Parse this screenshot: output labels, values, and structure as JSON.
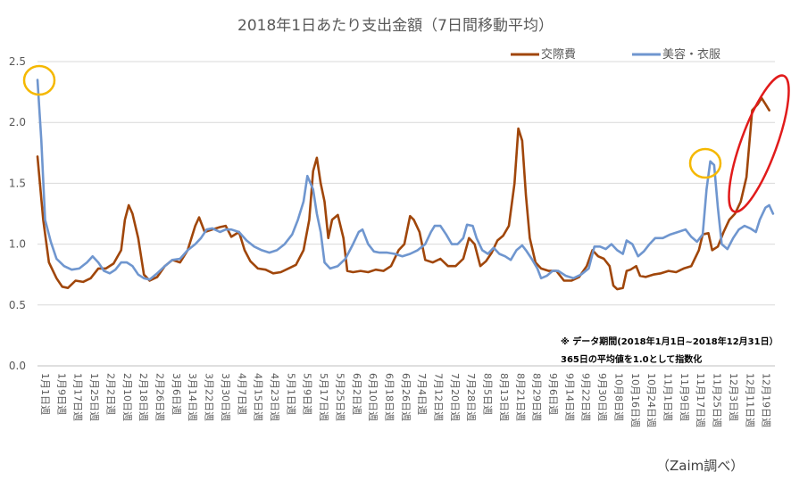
{
  "chart_data": {
    "type": "line",
    "title": "2018年1日あたり支出金額（7日間移動平均）",
    "ylim": [
      0,
      2.5
    ],
    "yticks": [
      "0.0",
      "0.5",
      "1.0",
      "1.5",
      "2.0",
      "2.5"
    ],
    "grid": true,
    "legend_position": "top-right",
    "x_labels": [
      "1月1日週",
      "1月9日週",
      "1月17日週",
      "1月25日週",
      "2月2日週",
      "2月10日週",
      "2月18日週",
      "2月26日週",
      "3月6日週",
      "3月14日週",
      "3月22日週",
      "3月30日週",
      "4月7日週",
      "4月15日週",
      "4月23日週",
      "5月1日週",
      "5月9日週",
      "5月17日週",
      "5月25日週",
      "6月2日週",
      "6月10日週",
      "6月18日週",
      "6月26日週",
      "7月4日週",
      "7月12日週",
      "7月20日週",
      "7月28日週",
      "8月5日週",
      "8月13日週",
      "8月21日週",
      "8月29日週",
      "9月6日週",
      "9月14日週",
      "9月22日週",
      "9月30日週",
      "10月8日週",
      "10月16日週",
      "10月24日週",
      "11月1日週",
      "11月9日週",
      "11月17日週",
      "11月25日週",
      "12月3日週",
      "12月11日週",
      "12月19日週"
    ],
    "series": [
      {
        "name": "交際費",
        "color": "#A0460A",
        "points": [
          [
            0,
            1.72
          ],
          [
            3,
            1.2
          ],
          [
            6,
            0.85
          ],
          [
            10,
            0.72
          ],
          [
            13,
            0.65
          ],
          [
            16,
            0.64
          ],
          [
            20,
            0.7
          ],
          [
            24,
            0.69
          ],
          [
            28,
            0.72
          ],
          [
            32,
            0.8
          ],
          [
            36,
            0.8
          ],
          [
            40,
            0.84
          ],
          [
            44,
            0.95
          ],
          [
            46,
            1.2
          ],
          [
            48,
            1.32
          ],
          [
            50,
            1.25
          ],
          [
            53,
            1.05
          ],
          [
            56,
            0.75
          ],
          [
            59,
            0.7
          ],
          [
            63,
            0.73
          ],
          [
            67,
            0.82
          ],
          [
            71,
            0.87
          ],
          [
            75,
            0.85
          ],
          [
            79,
            0.95
          ],
          [
            83,
            1.15
          ],
          [
            85,
            1.22
          ],
          [
            88,
            1.1
          ],
          [
            92,
            1.12
          ],
          [
            96,
            1.14
          ],
          [
            99,
            1.15
          ],
          [
            102,
            1.06
          ],
          [
            106,
            1.1
          ],
          [
            109,
            0.95
          ],
          [
            112,
            0.86
          ],
          [
            116,
            0.8
          ],
          [
            120,
            0.79
          ],
          [
            124,
            0.76
          ],
          [
            128,
            0.77
          ],
          [
            132,
            0.8
          ],
          [
            136,
            0.83
          ],
          [
            140,
            0.95
          ],
          [
            143,
            1.2
          ],
          [
            145,
            1.6
          ],
          [
            147,
            1.71
          ],
          [
            149,
            1.5
          ],
          [
            151,
            1.35
          ],
          [
            153,
            1.05
          ],
          [
            155,
            1.2
          ],
          [
            158,
            1.24
          ],
          [
            161,
            1.05
          ],
          [
            163,
            0.78
          ],
          [
            166,
            0.77
          ],
          [
            170,
            0.78
          ],
          [
            174,
            0.77
          ],
          [
            178,
            0.79
          ],
          [
            182,
            0.78
          ],
          [
            186,
            0.82
          ],
          [
            190,
            0.95
          ],
          [
            193,
            1.0
          ],
          [
            196,
            1.23
          ],
          [
            198,
            1.2
          ],
          [
            201,
            1.1
          ],
          [
            204,
            0.87
          ],
          [
            208,
            0.85
          ],
          [
            212,
            0.88
          ],
          [
            216,
            0.82
          ],
          [
            220,
            0.82
          ],
          [
            224,
            0.88
          ],
          [
            227,
            1.05
          ],
          [
            230,
            1.0
          ],
          [
            233,
            0.82
          ],
          [
            236,
            0.86
          ],
          [
            239,
            0.93
          ],
          [
            242,
            1.03
          ],
          [
            245,
            1.07
          ],
          [
            248,
            1.15
          ],
          [
            251,
            1.5
          ],
          [
            253,
            1.95
          ],
          [
            255,
            1.85
          ],
          [
            257,
            1.4
          ],
          [
            259,
            1.05
          ],
          [
            262,
            0.85
          ],
          [
            265,
            0.8
          ],
          [
            269,
            0.78
          ],
          [
            273,
            0.78
          ],
          [
            277,
            0.7
          ],
          [
            281,
            0.7
          ],
          [
            285,
            0.73
          ],
          [
            289,
            0.82
          ],
          [
            292,
            0.95
          ],
          [
            295,
            0.9
          ],
          [
            298,
            0.88
          ],
          [
            301,
            0.82
          ],
          [
            303,
            0.66
          ],
          [
            305,
            0.63
          ],
          [
            308,
            0.64
          ],
          [
            310,
            0.78
          ],
          [
            312,
            0.79
          ],
          [
            315,
            0.82
          ],
          [
            317,
            0.74
          ],
          [
            320,
            0.73
          ],
          [
            324,
            0.75
          ],
          [
            328,
            0.76
          ],
          [
            332,
            0.78
          ],
          [
            336,
            0.77
          ],
          [
            340,
            0.8
          ],
          [
            344,
            0.82
          ],
          [
            348,
            0.95
          ],
          [
            350,
            1.08
          ],
          [
            353,
            1.09
          ],
          [
            355,
            0.95
          ],
          [
            358,
            0.98
          ],
          [
            361,
            1.1
          ],
          [
            364,
            1.2
          ],
          [
            367,
            1.25
          ],
          [
            370,
            1.35
          ],
          [
            373,
            1.55
          ],
          [
            376,
            2.1
          ],
          [
            379,
            2.15
          ],
          [
            381,
            2.2
          ],
          [
            383,
            2.15
          ],
          [
            385,
            2.1
          ]
        ]
      },
      {
        "name": "美容・衣服",
        "color": "#6F96CF",
        "points": [
          [
            0,
            2.35
          ],
          [
            2,
            1.85
          ],
          [
            4,
            1.2
          ],
          [
            7,
            1.02
          ],
          [
            10,
            0.88
          ],
          [
            14,
            0.82
          ],
          [
            18,
            0.79
          ],
          [
            22,
            0.8
          ],
          [
            26,
            0.85
          ],
          [
            29,
            0.9
          ],
          [
            32,
            0.85
          ],
          [
            35,
            0.78
          ],
          [
            38,
            0.76
          ],
          [
            41,
            0.79
          ],
          [
            44,
            0.85
          ],
          [
            47,
            0.85
          ],
          [
            50,
            0.82
          ],
          [
            53,
            0.75
          ],
          [
            56,
            0.72
          ],
          [
            59,
            0.71
          ],
          [
            63,
            0.76
          ],
          [
            67,
            0.82
          ],
          [
            71,
            0.87
          ],
          [
            75,
            0.88
          ],
          [
            79,
            0.95
          ],
          [
            83,
            1.0
          ],
          [
            86,
            1.05
          ],
          [
            89,
            1.12
          ],
          [
            92,
            1.13
          ],
          [
            96,
            1.1
          ],
          [
            99,
            1.12
          ],
          [
            102,
            1.12
          ],
          [
            106,
            1.1
          ],
          [
            110,
            1.03
          ],
          [
            114,
            0.98
          ],
          [
            118,
            0.95
          ],
          [
            122,
            0.93
          ],
          [
            126,
            0.95
          ],
          [
            130,
            1.0
          ],
          [
            134,
            1.08
          ],
          [
            137,
            1.2
          ],
          [
            140,
            1.35
          ],
          [
            142,
            1.56
          ],
          [
            145,
            1.45
          ],
          [
            147,
            1.25
          ],
          [
            149,
            1.1
          ],
          [
            151,
            0.85
          ],
          [
            154,
            0.8
          ],
          [
            158,
            0.82
          ],
          [
            162,
            0.88
          ],
          [
            166,
            1.0
          ],
          [
            169,
            1.1
          ],
          [
            171,
            1.12
          ],
          [
            174,
            1.0
          ],
          [
            177,
            0.94
          ],
          [
            180,
            0.93
          ],
          [
            184,
            0.93
          ],
          [
            188,
            0.92
          ],
          [
            192,
            0.9
          ],
          [
            196,
            0.92
          ],
          [
            200,
            0.95
          ],
          [
            204,
            1.0
          ],
          [
            207,
            1.1
          ],
          [
            209,
            1.15
          ],
          [
            212,
            1.15
          ],
          [
            215,
            1.08
          ],
          [
            218,
            1.0
          ],
          [
            221,
            1.0
          ],
          [
            224,
            1.05
          ],
          [
            226,
            1.16
          ],
          [
            229,
            1.15
          ],
          [
            231,
            1.05
          ],
          [
            234,
            0.95
          ],
          [
            237,
            0.92
          ],
          [
            240,
            0.97
          ],
          [
            243,
            0.92
          ],
          [
            246,
            0.9
          ],
          [
            249,
            0.87
          ],
          [
            252,
            0.95
          ],
          [
            255,
            0.99
          ],
          [
            257,
            0.95
          ],
          [
            260,
            0.88
          ],
          [
            263,
            0.8
          ],
          [
            265,
            0.72
          ],
          [
            268,
            0.74
          ],
          [
            271,
            0.78
          ],
          [
            274,
            0.78
          ],
          [
            278,
            0.74
          ],
          [
            282,
            0.72
          ],
          [
            286,
            0.75
          ],
          [
            290,
            0.8
          ],
          [
            293,
            0.98
          ],
          [
            296,
            0.98
          ],
          [
            299,
            0.96
          ],
          [
            302,
            1.0
          ],
          [
            305,
            0.95
          ],
          [
            308,
            0.92
          ],
          [
            310,
            1.03
          ],
          [
            313,
            1.0
          ],
          [
            316,
            0.9
          ],
          [
            319,
            0.94
          ],
          [
            322,
            1.0
          ],
          [
            325,
            1.05
          ],
          [
            329,
            1.05
          ],
          [
            333,
            1.08
          ],
          [
            337,
            1.1
          ],
          [
            341,
            1.12
          ],
          [
            344,
            1.06
          ],
          [
            347,
            1.02
          ],
          [
            350,
            1.08
          ],
          [
            352,
            1.45
          ],
          [
            354,
            1.68
          ],
          [
            356,
            1.65
          ],
          [
            358,
            1.3
          ],
          [
            360,
            1.0
          ],
          [
            363,
            0.96
          ],
          [
            366,
            1.05
          ],
          [
            369,
            1.12
          ],
          [
            372,
            1.15
          ],
          [
            375,
            1.13
          ],
          [
            378,
            1.1
          ],
          [
            380,
            1.2
          ],
          [
            383,
            1.3
          ],
          [
            385,
            1.32
          ],
          [
            387,
            1.25
          ]
        ]
      }
    ],
    "annotations": [
      "※ データ期間(2018年1月1日~2018年12月31日）",
      "365日の平均値を1.0として指数化"
    ],
    "source": "（Zaim調べ）"
  }
}
